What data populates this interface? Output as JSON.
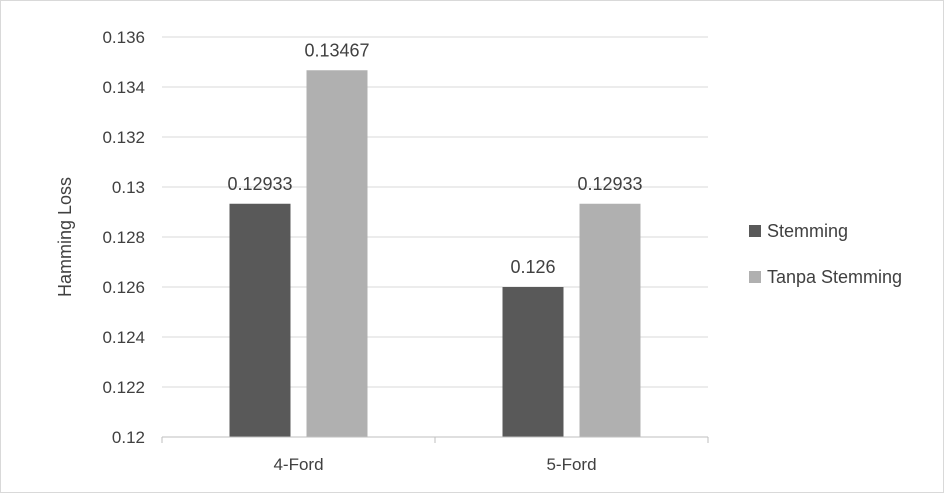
{
  "chart_data": {
    "type": "bar",
    "title": "",
    "xlabel": "",
    "ylabel": "Hamming Loss",
    "categories": [
      "4-Ford",
      "5-Ford"
    ],
    "series": [
      {
        "name": "Stemming",
        "values": [
          0.12933,
          0.126
        ],
        "labels": [
          "0.12933",
          "0.126"
        ],
        "color": "#595959"
      },
      {
        "name": "Tanpa Stemming",
        "values": [
          0.13467,
          0.12933
        ],
        "labels": [
          "0.13467",
          "0.12933"
        ],
        "color": "#b0b0b0"
      }
    ],
    "ylim": [
      0.12,
      0.136
    ],
    "yticks": [
      0.12,
      0.122,
      0.124,
      0.126,
      0.128,
      0.13,
      0.132,
      0.134,
      0.136
    ],
    "ytick_labels": [
      "0.12",
      "0.122",
      "0.124",
      "0.126",
      "0.128",
      "0.13",
      "0.132",
      "0.134",
      "0.136"
    ],
    "grid": true,
    "legend_position": "right",
    "gridline_color": "#d9d9d9",
    "axis_color": "#bfbfbf"
  }
}
